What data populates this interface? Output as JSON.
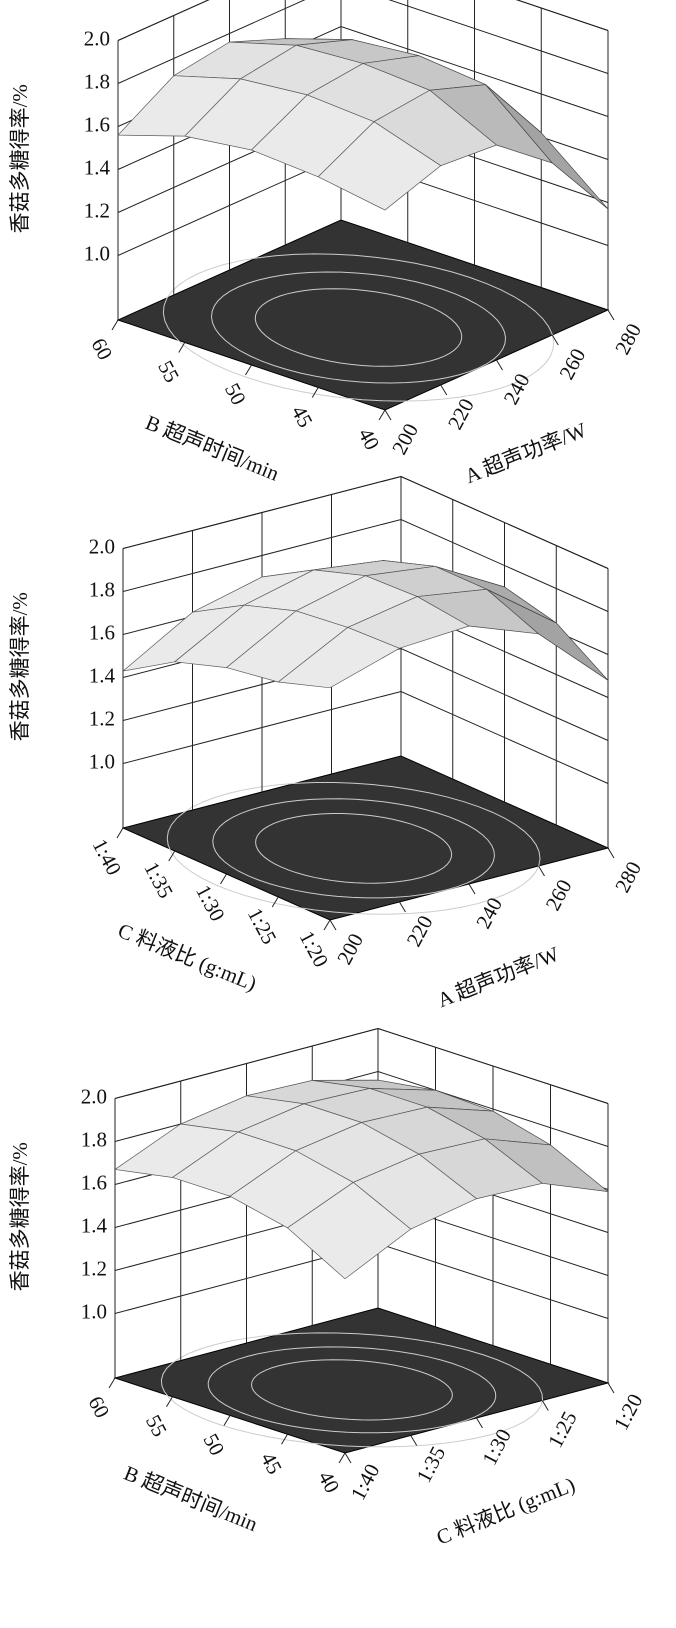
{
  "chart_data": [
    {
      "type": "surface",
      "zlabel": "香菇多糖得率/%",
      "xlabel": "B 超声时间/min",
      "ylabel": "A 超声功率/W",
      "zlim": [
        0.7,
        2.0
      ],
      "zticks": [
        {
          "value": 1,
          "label": "1.0"
        },
        {
          "value": 1.2,
          "label": "1.2"
        },
        {
          "value": 1.4,
          "label": "1.4"
        },
        {
          "value": 1.6,
          "label": "1.6"
        },
        {
          "value": 1.8,
          "label": "1.8"
        },
        {
          "value": 2,
          "label": "2.0"
        }
      ],
      "xlim": [
        60,
        40
      ],
      "xticks": [
        60,
        55,
        50,
        45,
        40
      ],
      "ylim": [
        200,
        280
      ],
      "yticks": [
        200,
        220,
        240,
        260,
        280
      ],
      "color": "#d9d9d9",
      "floor_color": "#333333",
      "z": [
        [
          1.56,
          1.72,
          1.76,
          1.66,
          1.4
        ],
        [
          1.66,
          1.81,
          1.85,
          1.76,
          1.5
        ],
        [
          1.7,
          1.84,
          1.87,
          1.79,
          1.53
        ],
        [
          1.68,
          1.82,
          1.85,
          1.76,
          1.42
        ],
        [
          1.63,
          1.72,
          1.7,
          1.5,
          1.17
        ]
      ]
    },
    {
      "type": "surface",
      "zlabel": "香菇多糖得率/%",
      "xlabel": "C 料液比 (g:mL)",
      "ylabel": "A 超声功率/W",
      "zlim": [
        0.7,
        2.0
      ],
      "zticks": [
        {
          "value": 1,
          "label": "1.0"
        },
        {
          "value": 1.2,
          "label": "1.2"
        },
        {
          "value": 1.4,
          "label": "1.4"
        },
        {
          "value": 1.6,
          "label": "1.6"
        },
        {
          "value": 1.8,
          "label": "1.8"
        },
        {
          "value": 2,
          "label": "2.0"
        }
      ],
      "xlim": [
        40,
        20
      ],
      "xticks": [
        {
          "value": 40,
          "label": "1:40"
        },
        {
          "value": 35,
          "label": "1:35"
        },
        {
          "value": 30,
          "label": "1:30"
        },
        {
          "value": 25,
          "label": "1:25"
        },
        {
          "value": 20,
          "label": "1:20"
        }
      ],
      "ylim": [
        200,
        280
      ],
      "yticks": [
        200,
        220,
        240,
        260,
        280
      ],
      "color": "#d9d9d9",
      "floor_color": "#333333",
      "z": [
        [
          1.43,
          1.62,
          1.7,
          1.66,
          1.5
        ],
        [
          1.58,
          1.76,
          1.84,
          1.8,
          1.64
        ],
        [
          1.66,
          1.84,
          1.92,
          1.88,
          1.7
        ],
        [
          1.7,
          1.87,
          1.93,
          1.88,
          1.64
        ],
        [
          1.78,
          1.88,
          1.9,
          1.78,
          1.48
        ]
      ]
    },
    {
      "type": "surface",
      "zlabel": "香菇多糖得率/%",
      "xlabel": "B 超声时间/min",
      "ylabel": "C 料液比 (g:mL)",
      "zlim": [
        0.7,
        2.0
      ],
      "zticks": [
        {
          "value": 1,
          "label": "1.0"
        },
        {
          "value": 1.2,
          "label": "1.2"
        },
        {
          "value": 1.4,
          "label": "1.4"
        },
        {
          "value": 1.6,
          "label": "1.6"
        },
        {
          "value": 1.8,
          "label": "1.8"
        },
        {
          "value": 2,
          "label": "2.0"
        }
      ],
      "xlim": [
        60,
        40
      ],
      "xticks": [
        60,
        55,
        50,
        45,
        40
      ],
      "ylim": [
        40,
        20
      ],
      "yticks": [
        {
          "value": 40,
          "label": "1:40"
        },
        {
          "value": 35,
          "label": "1:35"
        },
        {
          "value": 30,
          "label": "1:30"
        },
        {
          "value": 25,
          "label": "1:25"
        },
        {
          "value": 20,
          "label": "1:20"
        }
      ],
      "color": "#d9d9d9",
      "floor_color": "#333333",
      "z": [
        [
          1.67,
          1.8,
          1.85,
          1.84,
          1.76
        ],
        [
          1.72,
          1.85,
          1.9,
          1.89,
          1.8
        ],
        [
          1.72,
          1.85,
          1.9,
          1.89,
          1.79
        ],
        [
          1.66,
          1.79,
          1.84,
          1.83,
          1.72
        ],
        [
          1.51,
          1.66,
          1.72,
          1.71,
          1.59
        ]
      ]
    }
  ]
}
